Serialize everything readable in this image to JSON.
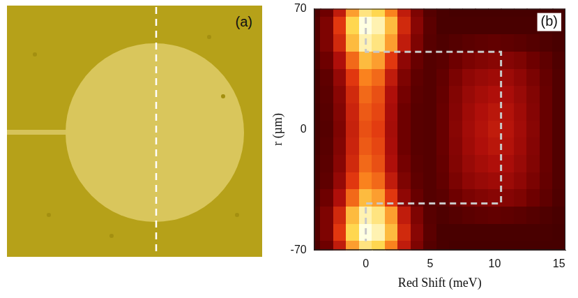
{
  "image_panel": {
    "label": "(a)"
  },
  "chart_data": {
    "type": "heatmap",
    "panel_label": "(b)",
    "x_label": "Red Shift (meV)",
    "y_label": "r (µm)",
    "xlim": [
      -4,
      15.5
    ],
    "xticks": [
      0,
      5,
      10,
      15
    ],
    "ylim": [
      -70,
      70
    ],
    "yticks": [
      -70,
      0,
      70
    ],
    "grid": false,
    "heatmap": {
      "zlim": [
        0,
        1
      ],
      "x": [
        -4,
        -3,
        -2,
        -1,
        0,
        1,
        2,
        3,
        4,
        5,
        6,
        7,
        8,
        9,
        10,
        11,
        12,
        13,
        14,
        15
      ],
      "y": [
        70,
        60,
        50,
        40,
        30,
        20,
        10,
        0,
        -10,
        -20,
        -30,
        -40,
        -50,
        -60,
        -70
      ],
      "cells": [
        [
          0.1,
          0.2,
          0.45,
          0.75,
          0.9,
          0.85,
          0.7,
          0.45,
          0.25,
          0.12,
          0.08,
          0.07,
          0.07,
          0.07,
          0.07,
          0.07,
          0.07,
          0.07,
          0.07,
          0.07
        ],
        [
          0.12,
          0.25,
          0.55,
          0.85,
          1.0,
          0.95,
          0.8,
          0.5,
          0.28,
          0.14,
          0.08,
          0.08,
          0.08,
          0.08,
          0.08,
          0.08,
          0.08,
          0.08,
          0.08,
          0.07
        ],
        [
          0.12,
          0.25,
          0.5,
          0.8,
          0.95,
          0.9,
          0.75,
          0.45,
          0.25,
          0.13,
          0.1,
          0.12,
          0.14,
          0.15,
          0.16,
          0.15,
          0.14,
          0.12,
          0.1,
          0.08
        ],
        [
          0.1,
          0.2,
          0.4,
          0.65,
          0.8,
          0.75,
          0.55,
          0.3,
          0.18,
          0.12,
          0.14,
          0.2,
          0.24,
          0.26,
          0.28,
          0.27,
          0.25,
          0.2,
          0.15,
          0.1
        ],
        [
          0.08,
          0.15,
          0.32,
          0.55,
          0.7,
          0.65,
          0.45,
          0.25,
          0.15,
          0.12,
          0.16,
          0.24,
          0.3,
          0.33,
          0.35,
          0.34,
          0.3,
          0.24,
          0.17,
          0.11
        ],
        [
          0.08,
          0.14,
          0.28,
          0.5,
          0.65,
          0.6,
          0.4,
          0.22,
          0.14,
          0.12,
          0.17,
          0.26,
          0.33,
          0.37,
          0.4,
          0.38,
          0.33,
          0.26,
          0.18,
          0.11
        ],
        [
          0.07,
          0.13,
          0.26,
          0.48,
          0.62,
          0.58,
          0.38,
          0.2,
          0.13,
          0.12,
          0.18,
          0.27,
          0.35,
          0.4,
          0.43,
          0.41,
          0.35,
          0.27,
          0.18,
          0.11
        ],
        [
          0.07,
          0.12,
          0.25,
          0.47,
          0.6,
          0.56,
          0.37,
          0.2,
          0.13,
          0.12,
          0.18,
          0.28,
          0.36,
          0.41,
          0.45,
          0.42,
          0.36,
          0.28,
          0.18,
          0.11
        ],
        [
          0.07,
          0.13,
          0.26,
          0.48,
          0.62,
          0.58,
          0.38,
          0.2,
          0.13,
          0.12,
          0.18,
          0.27,
          0.35,
          0.4,
          0.43,
          0.41,
          0.35,
          0.27,
          0.18,
          0.11
        ],
        [
          0.08,
          0.14,
          0.28,
          0.5,
          0.65,
          0.6,
          0.4,
          0.22,
          0.14,
          0.12,
          0.17,
          0.26,
          0.33,
          0.37,
          0.4,
          0.38,
          0.33,
          0.26,
          0.18,
          0.11
        ],
        [
          0.08,
          0.15,
          0.32,
          0.55,
          0.7,
          0.65,
          0.45,
          0.25,
          0.15,
          0.12,
          0.16,
          0.24,
          0.3,
          0.33,
          0.35,
          0.34,
          0.3,
          0.24,
          0.17,
          0.11
        ],
        [
          0.1,
          0.2,
          0.4,
          0.65,
          0.8,
          0.75,
          0.55,
          0.3,
          0.18,
          0.12,
          0.14,
          0.2,
          0.24,
          0.26,
          0.28,
          0.27,
          0.25,
          0.2,
          0.15,
          0.1
        ],
        [
          0.12,
          0.25,
          0.5,
          0.8,
          0.95,
          0.9,
          0.75,
          0.45,
          0.25,
          0.13,
          0.1,
          0.12,
          0.14,
          0.15,
          0.16,
          0.15,
          0.14,
          0.12,
          0.1,
          0.08
        ],
        [
          0.12,
          0.25,
          0.55,
          0.85,
          1.0,
          0.95,
          0.8,
          0.5,
          0.28,
          0.14,
          0.08,
          0.08,
          0.08,
          0.08,
          0.08,
          0.08,
          0.08,
          0.08,
          0.08,
          0.07
        ],
        [
          0.1,
          0.2,
          0.45,
          0.75,
          0.9,
          0.85,
          0.7,
          0.45,
          0.25,
          0.12,
          0.08,
          0.07,
          0.07,
          0.07,
          0.07,
          0.07,
          0.07,
          0.07,
          0.07,
          0.07
        ]
      ]
    },
    "series": [
      {
        "type": "line",
        "color": "#c8c8c8",
        "line_style": "dashed",
        "x": [
          0,
          0,
          10.5,
          10.5,
          0,
          0
        ],
        "y": [
          65,
          45,
          45,
          -43,
          -43,
          -65
        ]
      }
    ]
  }
}
